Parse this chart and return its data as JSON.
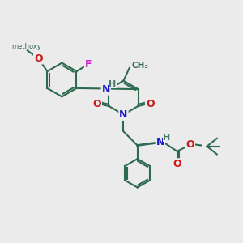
{
  "bg_color": "#ebebeb",
  "bond_color": "#2d6b50",
  "bond_width": 1.5,
  "atom_colors": {
    "N": "#1a1acc",
    "O": "#cc1a1a",
    "F": "#cc22cc",
    "H": "#4a7a6a",
    "C": "#2d6b50"
  },
  "figsize": [
    3.0,
    3.0
  ],
  "dpi": 100,
  "xlim": [
    0,
    12
  ],
  "ylim": [
    0,
    12
  ]
}
